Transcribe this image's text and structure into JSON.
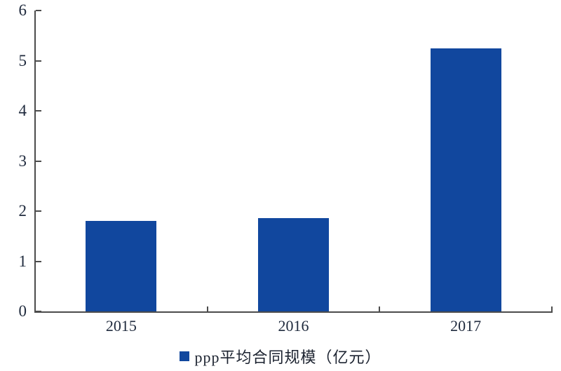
{
  "chart_data": {
    "type": "bar",
    "title": "",
    "categories": [
      "2015",
      "2016",
      "2017"
    ],
    "series": [
      {
        "name": "ppp平均合同规模（亿元）",
        "values": [
          1.8,
          1.86,
          5.25
        ]
      }
    ],
    "xlabel": "",
    "ylabel": "",
    "ylim": [
      0,
      6
    ],
    "yticks": [
      0,
      1,
      2,
      3,
      4,
      5,
      6
    ],
    "grid": false,
    "legend_position": "bottom",
    "colors": {
      "bar": "#11479E",
      "axis": "#4c4c4c",
      "tick_label": "#1f2a3d",
      "legend_text": "#1c2330"
    }
  },
  "legend": {
    "label": "ppp平均合同规模（亿元）"
  }
}
